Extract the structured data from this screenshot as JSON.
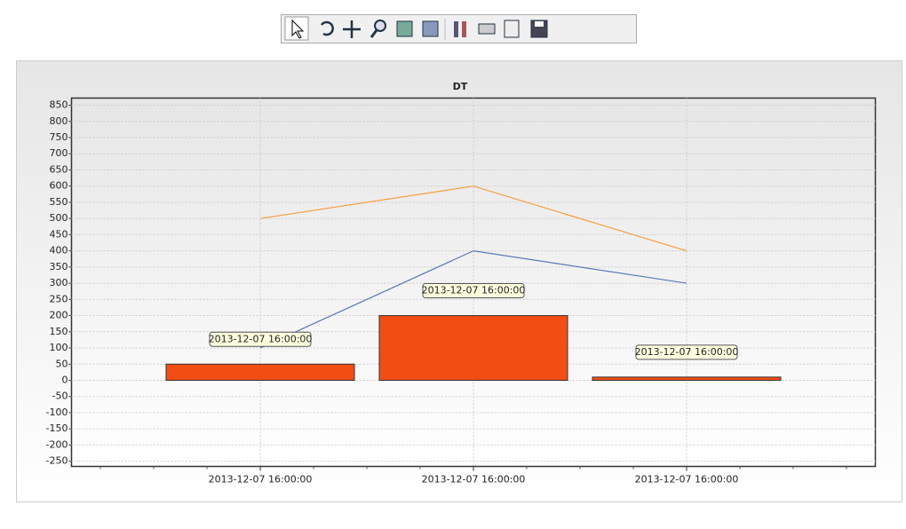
{
  "chart_data": {
    "type": "bar",
    "title": "DT",
    "categories": [
      "2013-12-07 16:00:00",
      "2013-12-07 16:00:00",
      "2013-12-07 16:00:00"
    ],
    "values": [
      50,
      200,
      10
    ],
    "color": "#f24e14",
    "tooltips": [
      "2013-12-07 16:00:00",
      "2013-12-07 16:00:00",
      "2013-12-07 16:00:00"
    ],
    "series": [
      {
        "type": "line",
        "color": "#f5a040",
        "values": [
          500,
          600,
          400
        ]
      },
      {
        "type": "line",
        "color": "#5a78b8",
        "values": [
          100,
          400,
          300
        ]
      }
    ],
    "ylim": [
      -266,
      872
    ],
    "yticks": [
      -250,
      -200,
      -150,
      -100,
      -50,
      0,
      50,
      100,
      150,
      200,
      250,
      300,
      350,
      400,
      450,
      500,
      550,
      600,
      650,
      700,
      750,
      800,
      850
    ],
    "grid": true
  }
}
